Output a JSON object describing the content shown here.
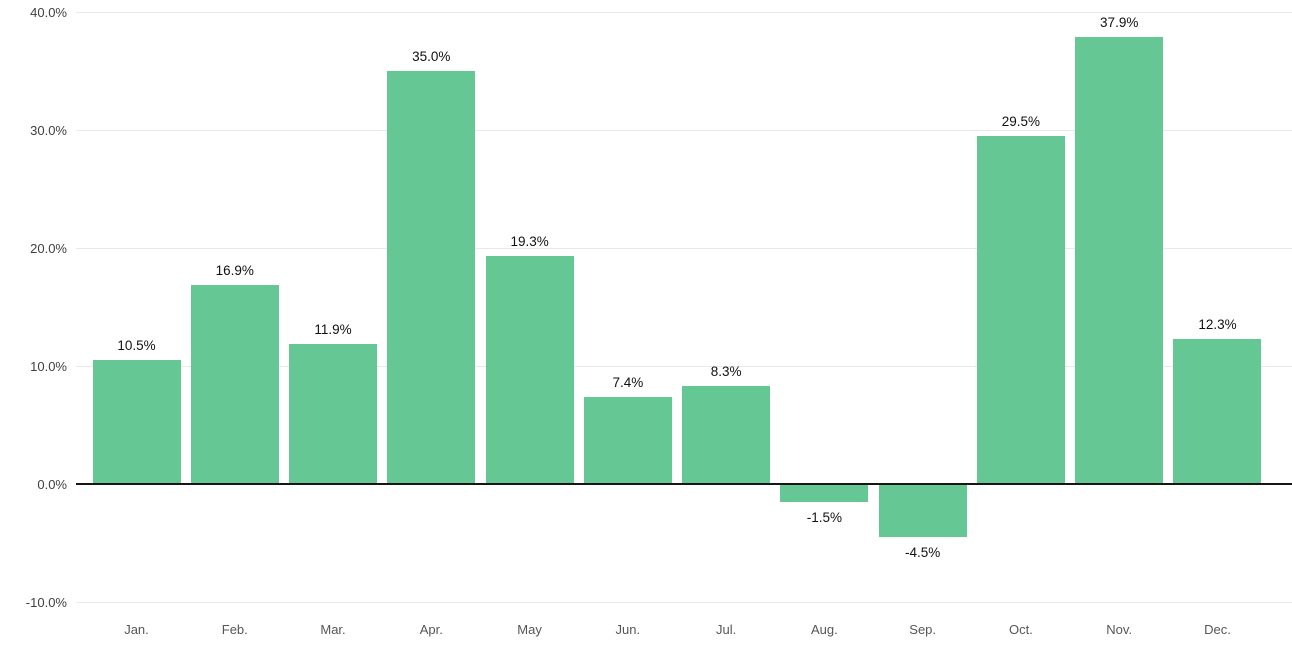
{
  "chart_data": {
    "type": "bar",
    "title": "",
    "xlabel": "",
    "ylabel": "",
    "categories": [
      "Jan.",
      "Feb.",
      "Mar.",
      "Apr.",
      "May",
      "Jun.",
      "Jul.",
      "Aug.",
      "Sep.",
      "Oct.",
      "Nov.",
      "Dec."
    ],
    "values": [
      10.5,
      16.9,
      11.9,
      35.0,
      19.3,
      7.4,
      8.3,
      -1.5,
      -4.5,
      29.5,
      37.9,
      12.3
    ],
    "value_labels": [
      "10.5%",
      "16.9%",
      "11.9%",
      "35.0%",
      "19.3%",
      "7.4%",
      "8.3%",
      "-1.5%",
      "-4.5%",
      "29.5%",
      "37.9%",
      "12.3%"
    ],
    "ylim": [
      -10,
      40
    ],
    "y_ticks": [
      40,
      30,
      20,
      10,
      0,
      -10
    ],
    "y_tick_labels": [
      "40.0%",
      "30.0%",
      "20.0%",
      "10.0%",
      "0.0%",
      "-10.0%"
    ],
    "grid": true,
    "legend": "none",
    "colors": {
      "bar": "#64c794",
      "gridline": "#e9e9e9",
      "zero_line": "#161616",
      "value_label": "#111111",
      "x_tick_label": "#565656",
      "y_tick_label": "#3f3f3f",
      "background": "#ffffff"
    }
  }
}
